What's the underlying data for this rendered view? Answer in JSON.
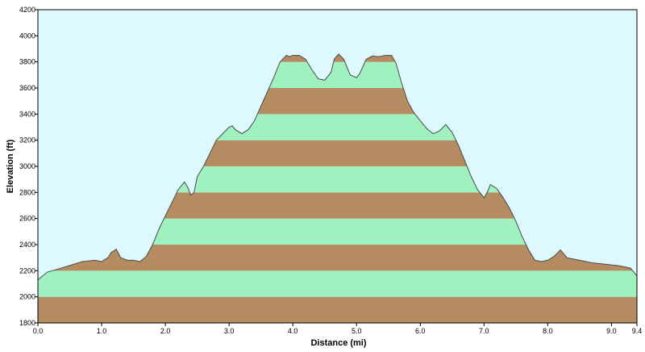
{
  "chart_data": {
    "type": "area",
    "title": "",
    "xlabel": "Distance  (mi)",
    "ylabel": "Elevation  (ft)",
    "xlim": [
      0,
      9.4
    ],
    "ylim": [
      1800,
      4200
    ],
    "x_ticks": [
      0.0,
      1.0,
      2.0,
      3.0,
      4.0,
      5.0,
      6.0,
      7.0,
      8.0,
      9.0,
      9.4
    ],
    "x_tick_labels": [
      "0.0",
      "1.0",
      "2.0",
      "3.0",
      "4.0",
      "5.0",
      "6.0",
      "7.0",
      "8.0",
      "9.0",
      "9.4"
    ],
    "y_ticks": [
      1800,
      2000,
      2200,
      2400,
      2600,
      2800,
      3000,
      3200,
      3400,
      3600,
      3800,
      4000,
      4200
    ],
    "y_tick_labels": [
      "1800",
      "2000",
      "2200",
      "2400",
      "2600",
      "2800",
      "3000",
      "3200",
      "3400",
      "3600",
      "3800",
      "4000",
      "4200"
    ],
    "band_interval": 200,
    "colors": {
      "sky": "#ddf9fd",
      "band_brown": "#b58c61",
      "band_green": "#9ff1c0",
      "profile_line": "#4a4a4a"
    },
    "series": [
      {
        "x": [
          0.0,
          0.05,
          0.15,
          0.3,
          0.5,
          0.7,
          0.9,
          1.0,
          1.1,
          1.15,
          1.23,
          1.3,
          1.4,
          1.5,
          1.6,
          1.7,
          1.8,
          1.9,
          2.0,
          2.1,
          2.2,
          2.3,
          2.35,
          2.4,
          2.45,
          2.5,
          2.6,
          2.7,
          2.8,
          2.9,
          3.0,
          3.05,
          3.1,
          3.2,
          3.3,
          3.4,
          3.5,
          3.6,
          3.7,
          3.8,
          3.9,
          3.95,
          4.0,
          4.1,
          4.2,
          4.3,
          4.4,
          4.5,
          4.6,
          4.65,
          4.72,
          4.8,
          4.9,
          5.0,
          5.05,
          5.15,
          5.25,
          5.35,
          5.45,
          5.55,
          5.62,
          5.7,
          5.8,
          5.9,
          6.0,
          6.1,
          6.2,
          6.3,
          6.4,
          6.5,
          6.6,
          6.7,
          6.8,
          6.9,
          7.0,
          7.05,
          7.1,
          7.2,
          7.3,
          7.4,
          7.5,
          7.6,
          7.7,
          7.8,
          7.9,
          8.0,
          8.1,
          8.2,
          8.3,
          8.5,
          8.7,
          8.9,
          9.1,
          9.3,
          9.4
        ],
        "y": [
          2130,
          2150,
          2190,
          2210,
          2240,
          2270,
          2280,
          2270,
          2300,
          2340,
          2365,
          2300,
          2280,
          2280,
          2270,
          2310,
          2400,
          2520,
          2620,
          2720,
          2820,
          2880,
          2840,
          2780,
          2800,
          2920,
          3000,
          3100,
          3200,
          3250,
          3300,
          3310,
          3280,
          3250,
          3280,
          3350,
          3460,
          3570,
          3680,
          3800,
          3850,
          3840,
          3850,
          3850,
          3820,
          3740,
          3670,
          3660,
          3720,
          3820,
          3860,
          3820,
          3700,
          3680,
          3710,
          3820,
          3845,
          3840,
          3850,
          3850,
          3790,
          3650,
          3500,
          3410,
          3350,
          3290,
          3250,
          3270,
          3320,
          3260,
          3160,
          3040,
          2920,
          2820,
          2760,
          2800,
          2860,
          2830,
          2760,
          2680,
          2580,
          2460,
          2360,
          2280,
          2270,
          2280,
          2310,
          2360,
          2300,
          2280,
          2260,
          2250,
          2240,
          2220,
          2160
        ]
      }
    ]
  }
}
